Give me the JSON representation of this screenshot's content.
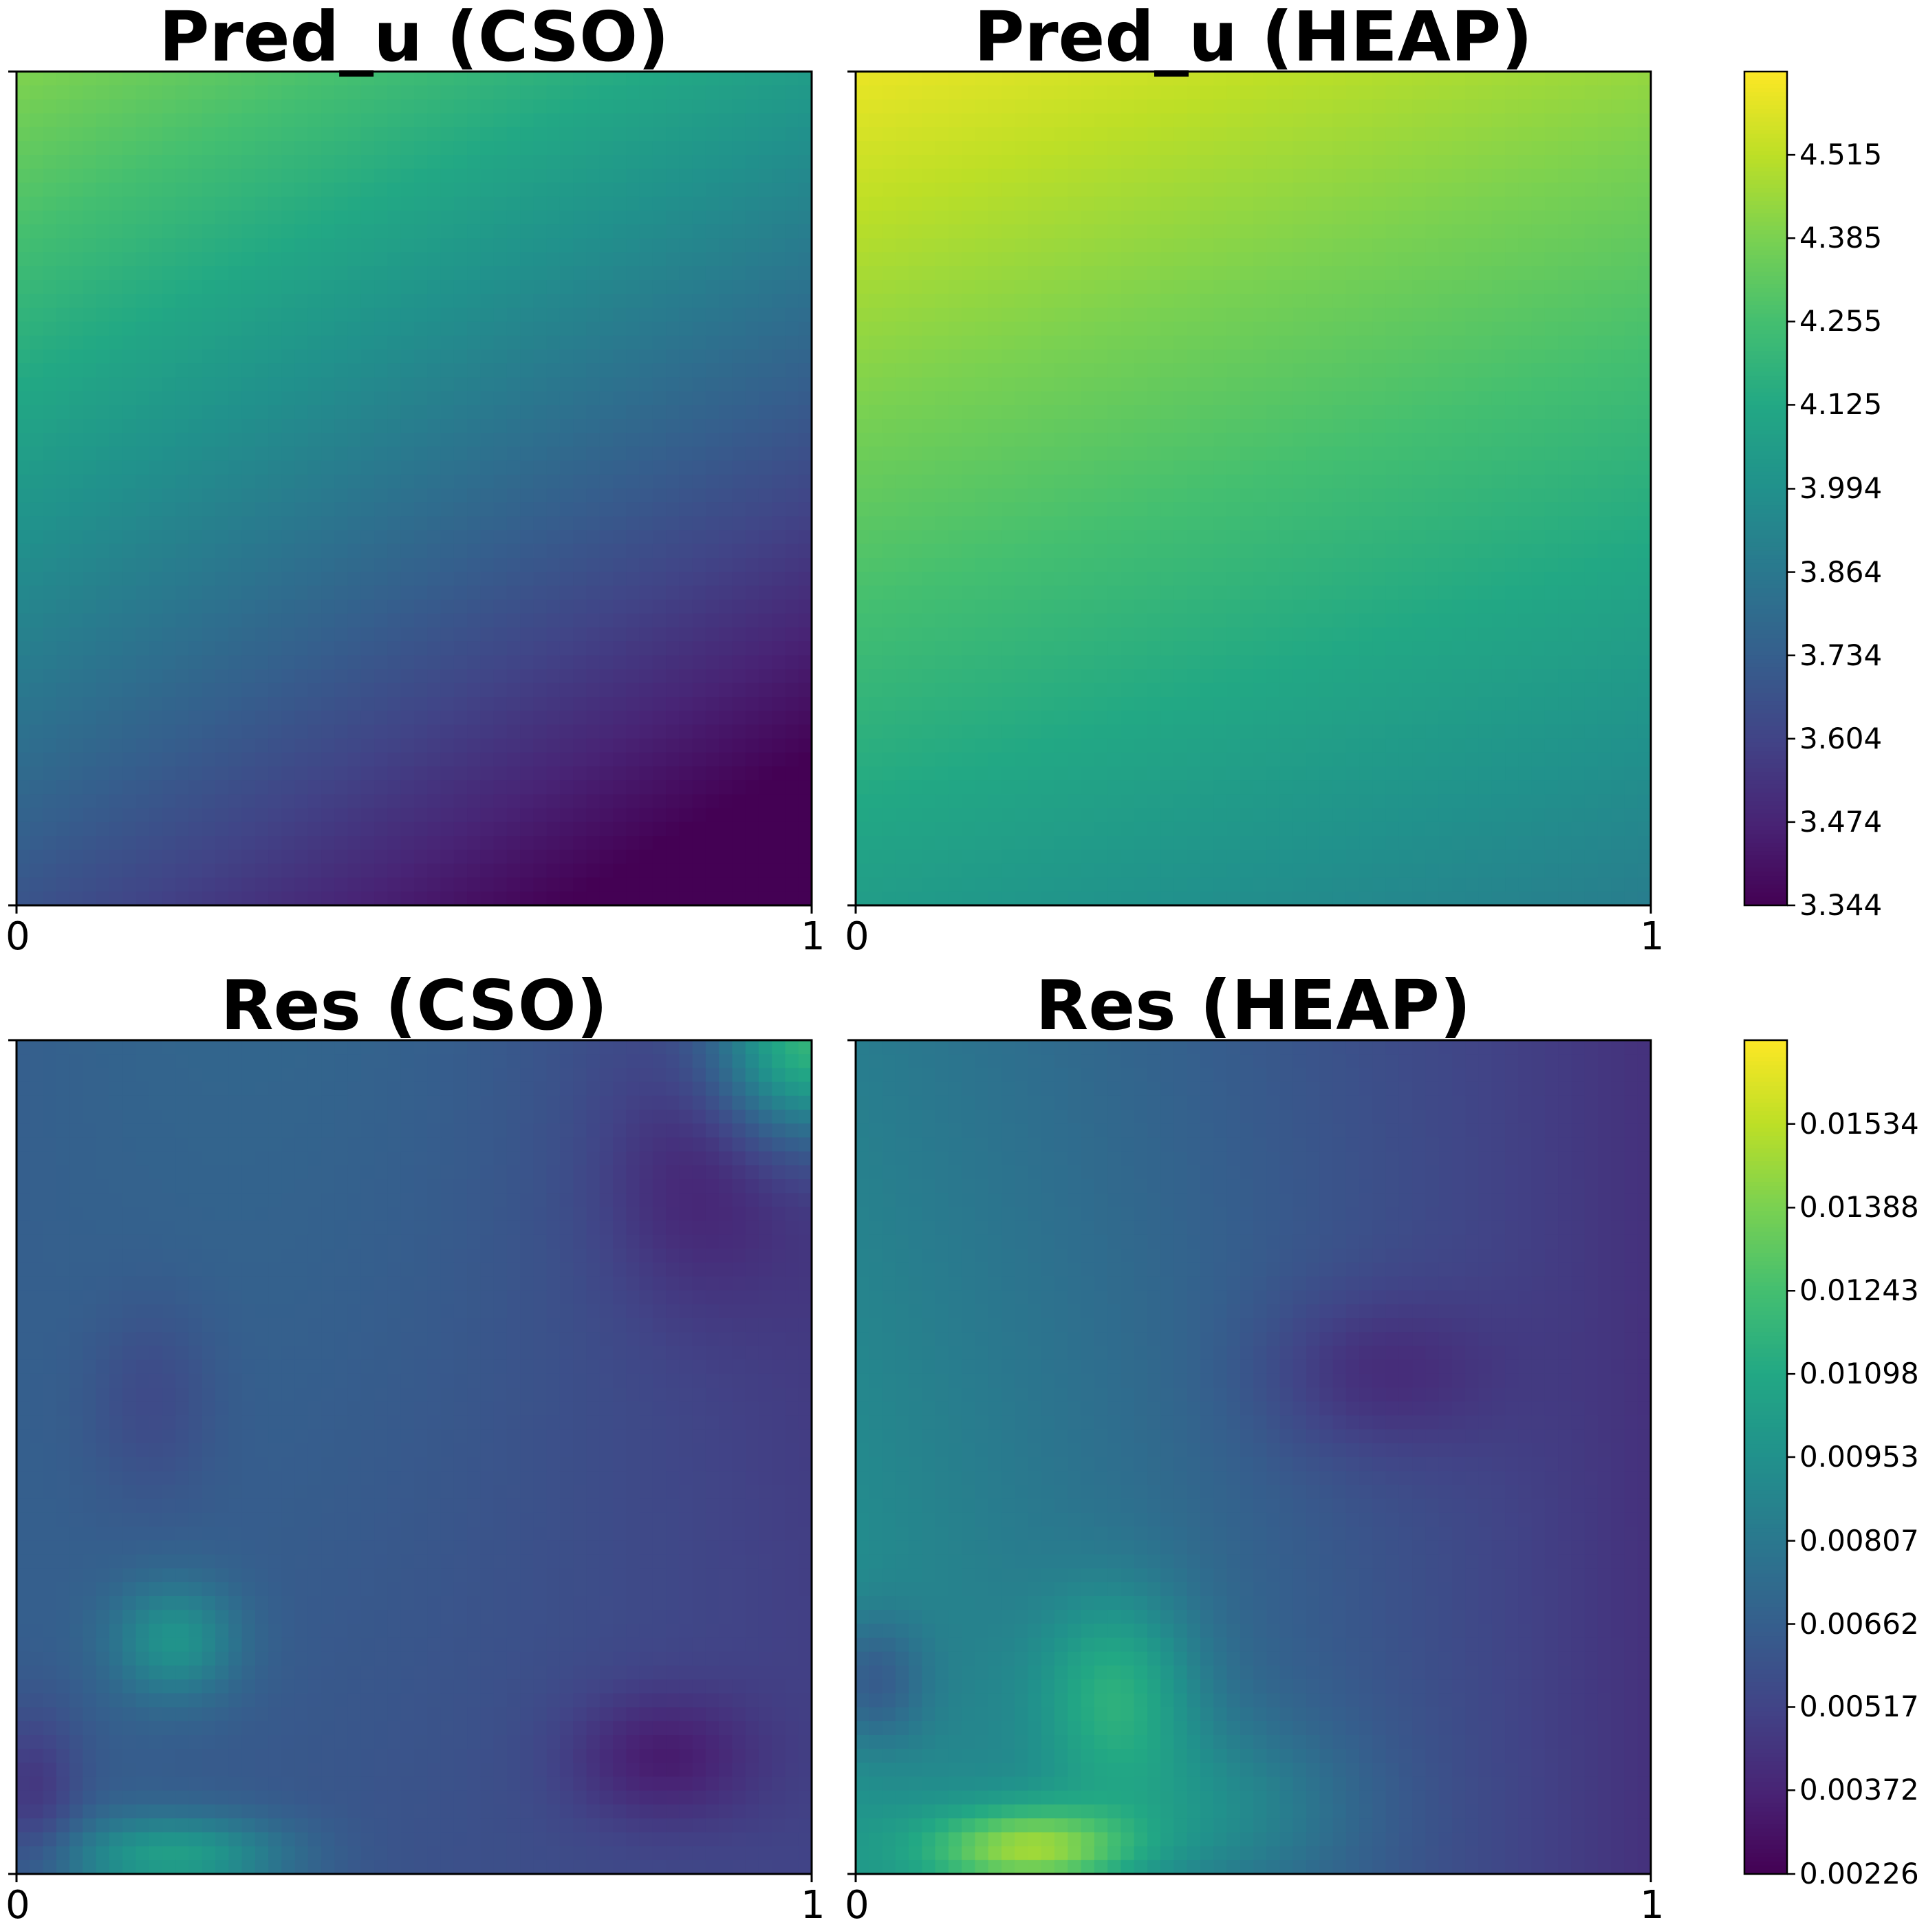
{
  "chart_data": [
    {
      "type": "heatmap",
      "title": "Pred_u (CSO)",
      "xticks": [
        "0",
        "1"
      ],
      "colormap": "viridis",
      "colorbar": "top",
      "approx_range": [
        3.344,
        4.45
      ],
      "pattern": "gradient, high at top-left, low at bottom-right"
    },
    {
      "type": "heatmap",
      "title": "Pred_u (HEAP)",
      "xticks": [
        "0",
        "1"
      ],
      "colormap": "viridis",
      "colorbar": "top",
      "approx_range": [
        4.03,
        4.64
      ],
      "pattern": "gradient, high at top-left, lower toward bottom"
    },
    {
      "type": "heatmap",
      "title": "Res (CSO)",
      "xticks": [
        "0",
        "1"
      ],
      "colormap": "viridis",
      "colorbar": "bottom",
      "approx_range": [
        0.00226,
        0.0135
      ],
      "pattern": "smooth low residual field with a hot spot at top-right corner and moderate spots along the bottom-left"
    },
    {
      "type": "heatmap",
      "title": "Res (HEAP)",
      "xticks": [
        "0",
        "1"
      ],
      "colormap": "viridis",
      "colorbar": "bottom",
      "approx_range": [
        0.00226,
        0.0165
      ],
      "pattern": "peak near the bottom edge at left-center, elevated band at lower-left-center, low region at right"
    }
  ],
  "colorbars": {
    "top": {
      "min": 3.344,
      "max": 4.645,
      "ticks": [
        "3.344",
        "3.474",
        "3.604",
        "3.734",
        "3.864",
        "3.994",
        "4.125",
        "4.255",
        "4.385",
        "4.515"
      ]
    },
    "bottom": {
      "min": 0.00226,
      "max": 0.0168,
      "ticks": [
        "0.00226",
        "0.00372",
        "0.00517",
        "0.00662",
        "0.00807",
        "0.00953",
        "0.01098",
        "0.01243",
        "0.01388",
        "0.01534"
      ]
    }
  }
}
